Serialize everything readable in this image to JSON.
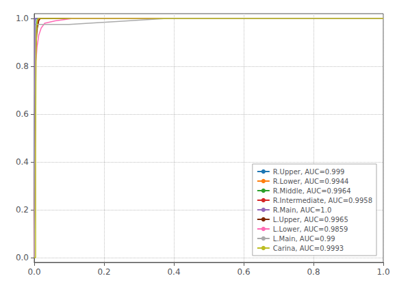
{
  "chart_data": {
    "type": "line",
    "series": [
      {
        "name": "R.Upper, AUC=0.999",
        "color": "#1f77b4",
        "x": [
          0,
          0.002,
          0.003,
          0.004,
          1.0
        ],
        "values": [
          0,
          0.97,
          0.99,
          1.0,
          1.0
        ]
      },
      {
        "name": "R.Lower, AUC=0.9944",
        "color": "#ff7f0e",
        "x": [
          0,
          0.003,
          0.005,
          0.007,
          0.01,
          0.013,
          1.0
        ],
        "values": [
          0,
          0.88,
          0.94,
          0.97,
          0.99,
          1.0,
          1.0
        ]
      },
      {
        "name": "R.Middle, AUC=0.9964",
        "color": "#2ca02c",
        "x": [
          0,
          0.003,
          0.005,
          0.007,
          0.009,
          1.0
        ],
        "values": [
          0,
          0.91,
          0.95,
          0.98,
          1.0,
          1.0
        ]
      },
      {
        "name": "R.Intermediate, AUC=0.9958",
        "color": "#d62728",
        "x": [
          0,
          0.003,
          0.005,
          0.008,
          0.012,
          0.018,
          1.0
        ],
        "values": [
          0,
          0.86,
          0.92,
          0.96,
          0.99,
          1.0,
          1.0
        ]
      },
      {
        "name": "R.Main, AUC=1.0",
        "color": "#9467bd",
        "x": [
          0,
          0.002,
          1.0
        ],
        "values": [
          0,
          1.0,
          1.0
        ]
      },
      {
        "name": "L.Upper, AUC=0.9965",
        "color": "#7f2700",
        "x": [
          0,
          0.004,
          0.006,
          0.009,
          0.013,
          0.016,
          1.0
        ],
        "values": [
          0,
          0.83,
          0.91,
          0.96,
          0.99,
          1.0,
          1.0
        ]
      },
      {
        "name": "L.Lower, AUC=0.9859",
        "color": "#ff69b4",
        "x": [
          0,
          0.005,
          0.008,
          0.013,
          0.02,
          0.03,
          0.06,
          0.11,
          1.0
        ],
        "values": [
          0,
          0.82,
          0.88,
          0.93,
          0.96,
          0.98,
          0.99,
          1.0,
          1.0
        ]
      },
      {
        "name": "L.Main, AUC=0.99",
        "color": "#aaaaaa",
        "x": [
          0,
          0.004,
          0.006,
          0.05,
          0.1,
          0.38,
          1.0
        ],
        "values": [
          0,
          0.97,
          0.975,
          0.975,
          0.975,
          1.0,
          1.0
        ]
      },
      {
        "name": "Carina, AUC=0.9993",
        "color": "#bcbd22",
        "x": [
          0,
          0.004,
          0.004,
          0.005,
          0.007,
          0.009,
          0.011,
          1.0
        ],
        "values": [
          0,
          0.0,
          0.46,
          0.82,
          0.95,
          0.99,
          1.0,
          1.0
        ]
      }
    ],
    "xlim": [
      0,
      1.0
    ],
    "ylim": [
      -0.02,
      1.02
    ],
    "xticks": [
      {
        "value": 0,
        "label": "0.0"
      },
      0.2,
      0.4,
      0.6,
      0.8,
      {
        "value": 1,
        "label": "1.0"
      }
    ],
    "yticks": [
      {
        "value": 0,
        "label": "0.0"
      },
      0.2,
      0.4,
      0.6,
      0.8,
      {
        "value": 1,
        "label": "1.0"
      }
    ],
    "grid": true,
    "legend": "lower right"
  }
}
